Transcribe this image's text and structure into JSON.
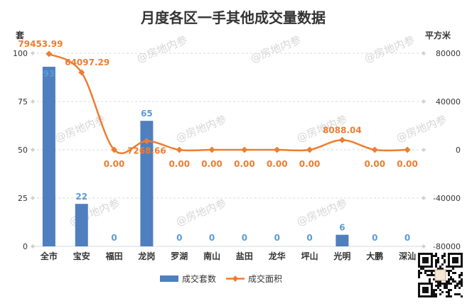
{
  "watermark": "@房地内参",
  "chart_data": {
    "type": "bar",
    "title": "月度各区一手其他成交量数据",
    "left_unit": "套",
    "right_unit": "平方米",
    "categories": [
      "全市",
      "宝安",
      "福田",
      "龙岗",
      "罗湖",
      "南山",
      "盐田",
      "龙华",
      "坪山",
      "光明",
      "大鹏",
      "深汕"
    ],
    "y_left": {
      "min": 0,
      "max": 100,
      "ticks": [
        0,
        25,
        50,
        75,
        100
      ]
    },
    "y_right": {
      "min": -80000,
      "max": 80000,
      "ticks": [
        -80000,
        -40000,
        0,
        40000,
        80000
      ]
    },
    "series": [
      {
        "name": "成交套数",
        "type": "bar",
        "axis": "left",
        "color": "#4f7fbf",
        "values": [
          93,
          22,
          0,
          65,
          0,
          0,
          0,
          0,
          0,
          6,
          0,
          0
        ],
        "labels": [
          "93",
          "22",
          "0",
          "65",
          "0",
          "0",
          "0",
          "0",
          "0",
          "6",
          "0",
          "0"
        ]
      },
      {
        "name": "成交面积",
        "type": "line",
        "axis": "right",
        "color": "#ed7d31",
        "values": [
          79453.99,
          64097.29,
          0,
          7268.66,
          0,
          0,
          0,
          0,
          0,
          8088.04,
          0,
          0
        ],
        "labels": [
          "79453.99",
          "64097.29",
          "0.00",
          "7268.66",
          "0.00",
          "0.00",
          "0.00",
          "0.00",
          "0.00",
          "8088.04",
          "0.00",
          "0.00"
        ]
      }
    ],
    "grid": true,
    "legend": "bottom"
  }
}
